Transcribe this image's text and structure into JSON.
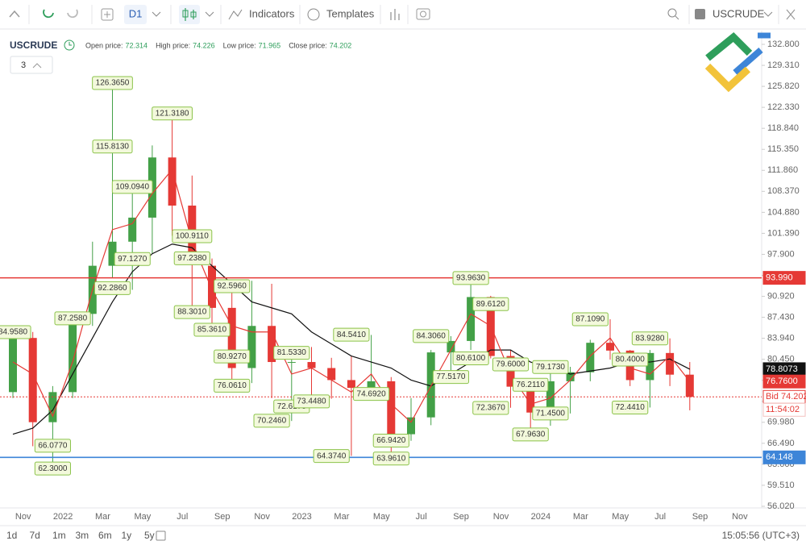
{
  "toolbar": {
    "timeframe": "D1",
    "indicators": "Indicators",
    "templates": "Templates",
    "symbol": "USCRUDE"
  },
  "info": {
    "symbol": "USCRUDE",
    "count": 3,
    "prices": [
      {
        "label": "Open price:",
        "value": 72.314
      },
      {
        "label": "High price:",
        "value": 74.226
      },
      {
        "label": "Low price:",
        "value": 71.965
      },
      {
        "label": "Close price:",
        "value": 74.202
      }
    ]
  },
  "chart_data": {
    "type": "candlestick",
    "categories": [
      null,
      "Nov",
      null,
      "2022",
      null,
      "Mar",
      null,
      "May",
      null,
      "Jul",
      null,
      "Sep",
      null,
      "Nov",
      null,
      "2023",
      null,
      "Mar",
      null,
      "May",
      null,
      "Jul",
      null,
      "Sep",
      null,
      "Nov",
      null,
      "2024",
      null,
      "Mar",
      null,
      "May",
      null,
      "Jul",
      null,
      "Sep",
      null,
      "Nov"
    ],
    "open": [
      75,
      84,
      70,
      75,
      88,
      96,
      100,
      104,
      114,
      106,
      96,
      89,
      79,
      86,
      80,
      80,
      79,
      77,
      75.7,
      76.8,
      68,
      70.8,
      81.6,
      83.5,
      90.8,
      81,
      75.9,
      71.6,
      76.8,
      78.3,
      83.2,
      81.9,
      77,
      81.5,
      77.9,
      null,
      null,
      null
    ],
    "high": [
      85,
      85,
      76,
      88,
      100,
      126.4,
      109,
      116,
      121.3,
      111,
      97.2,
      92.6,
      93.5,
      93,
      81.5,
      82.5,
      80.7,
      81,
      84.5,
      77.5,
      74,
      82,
      84.3,
      93.96,
      91,
      82,
      76.2,
      79.2,
      79.2,
      83.7,
      87.1,
      82,
      82,
      83.93,
      80,
      null,
      null,
      null
    ],
    "low": [
      74,
      66,
      62.3,
      74,
      86,
      94,
      92,
      98,
      101,
      88,
      85.4,
      76,
      76.5,
      74,
      70.2,
      72.6,
      73.9,
      64.4,
      74.7,
      63.96,
      66.9,
      69.5,
      77.6,
      82,
      80.6,
      72.4,
      67.96,
      69.4,
      71.45,
      76.8,
      80.4,
      76,
      72.44,
      76,
      71.97,
      null,
      null,
      null
    ],
    "close": [
      84,
      70,
      75,
      88,
      96,
      100,
      104,
      114,
      106,
      98,
      89,
      79,
      86,
      80,
      80,
      79,
      77,
      75.7,
      76.8,
      68,
      70.8,
      81.6,
      83.5,
      90.8,
      81,
      75.9,
      71.6,
      76.8,
      78.3,
      83.2,
      81.9,
      77,
      81.5,
      77.9,
      74.202,
      null,
      null,
      null
    ],
    "up_color": "#43a047",
    "down_color": "#e53935",
    "moving_averages": [
      {
        "color": "#111111",
        "values": [
          68,
          69,
          72,
          78,
          84,
          90,
          95,
          98,
          99.6,
          99,
          96,
          93,
          90,
          89,
          88,
          85,
          83,
          81,
          80,
          79,
          77,
          76,
          78,
          80,
          82,
          82,
          80,
          79,
          78,
          78.5,
          79,
          80,
          80,
          80.5,
          78.8073,
          null,
          null,
          null
        ]
      },
      {
        "color": "#e53935",
        "values": [
          80,
          78,
          71,
          80,
          92,
          102,
          103,
          108,
          112,
          100,
          92,
          86,
          85,
          85,
          78,
          79,
          77,
          75,
          78,
          73,
          70,
          76,
          82,
          88,
          86,
          78,
          73,
          74,
          77,
          81,
          84,
          79,
          78,
          81,
          76.76,
          null,
          null,
          null
        ]
      }
    ],
    "annotations": [
      [
        {
          "value": 84.958,
          "label": "84.9580"
        }
      ],
      [],
      [
        {
          "value": 66.077,
          "label": "66.0770"
        },
        {
          "value": 62.3,
          "label": "62.3000"
        }
      ],
      [
        {
          "value": 87.258,
          "label": "87.2580"
        }
      ],
      [],
      [
        {
          "value": 126.365,
          "label": "126.3650"
        },
        {
          "value": 115.813,
          "label": "115.8130"
        },
        {
          "value": 92.286,
          "label": "92.2860"
        }
      ],
      [
        {
          "value": 109.094,
          "label": "109.0940"
        },
        {
          "value": 97.127,
          "label": "97.1270"
        }
      ],
      [],
      [
        {
          "value": 121.318,
          "label": "121.3180"
        }
      ],
      [
        {
          "value": 100.911,
          "label": "100.9110"
        },
        {
          "value": 97.238,
          "label": "97.2380"
        },
        {
          "value": 88.301,
          "label": "88.3010"
        }
      ],
      [
        {
          "value": 85.361,
          "label": "85.3610"
        }
      ],
      [
        {
          "value": 92.596,
          "label": "92.5960"
        },
        {
          "value": 80.927,
          "label": "80.9270"
        },
        {
          "value": 76.061,
          "label": "76.0610"
        }
      ],
      [],
      [
        {
          "value": 70.246,
          "label": "70.2460"
        }
      ],
      [
        {
          "value": 81.533,
          "label": "81.5330"
        },
        {
          "value": 72.617,
          "label": "72.6170"
        }
      ],
      [
        {
          "value": 73.448,
          "label": "73.4480"
        }
      ],
      [
        {
          "value": 64.374,
          "label": "64.3740"
        }
      ],
      [
        {
          "value": 84.541,
          "label": "84.5410"
        }
      ],
      [
        {
          "value": 74.692,
          "label": "74.6920"
        }
      ],
      [
        {
          "value": 63.961,
          "label": "63.9610"
        },
        {
          "value": 66.942,
          "label": "66.9420"
        }
      ],
      [],
      [
        {
          "value": 84.306,
          "label": "84.3060"
        }
      ],
      [
        {
          "value": 77.517,
          "label": "77.5170"
        }
      ],
      [
        {
          "value": 93.963,
          "label": "93.9630"
        },
        {
          "value": 80.61,
          "label": "80.6100"
        }
      ],
      [
        {
          "value": 89.612,
          "label": "89.6120"
        },
        {
          "value": 72.367,
          "label": "72.3670"
        }
      ],
      [
        {
          "value": 79.6,
          "label": "79.6000"
        }
      ],
      [
        {
          "value": 76.211,
          "label": "76.2110"
        },
        {
          "value": 67.963,
          "label": "67.9630"
        }
      ],
      [
        {
          "value": 79.173,
          "label": "79.1730"
        },
        {
          "value": 71.45,
          "label": "71.4500"
        }
      ],
      [],
      [
        {
          "value": 87.109,
          "label": "87.1090"
        }
      ],
      [],
      [
        {
          "value": 80.4,
          "label": "80.4000"
        },
        {
          "value": 72.441,
          "label": "72.4410"
        }
      ],
      [
        {
          "value": 83.928,
          "label": "83.9280"
        }
      ],
      [],
      [],
      [],
      [],
      []
    ],
    "ylim": [
      55.75,
      135.08
    ],
    "yticks": [
      {
        "value": 132.8,
        "label": "132.800"
      },
      {
        "value": 129.31,
        "label": "129.310"
      },
      {
        "value": 125.82,
        "label": "125.820"
      },
      {
        "value": 122.33,
        "label": "122.330"
      },
      {
        "value": 118.84,
        "label": "118.840"
      },
      {
        "value": 115.35,
        "label": "115.350"
      },
      {
        "value": 111.86,
        "label": "111.860"
      },
      {
        "value": 108.37,
        "label": "108.370"
      },
      {
        "value": 104.88,
        "label": "104.880"
      },
      {
        "value": 101.39,
        "label": "101.390"
      },
      {
        "value": 97.9,
        "label": "97.900"
      },
      {
        "value": 94.41,
        "label": "94.410"
      },
      {
        "value": 90.92,
        "label": "90.920"
      },
      {
        "value": 87.43,
        "label": "87.430"
      },
      {
        "value": 83.94,
        "label": "83.940"
      },
      {
        "value": 80.45,
        "label": "80.450"
      },
      {
        "value": 76.96,
        "label": "76.960"
      },
      {
        "value": 73.47,
        "label": "73.470"
      },
      {
        "value": 69.98,
        "label": "69.980"
      },
      {
        "value": 66.49,
        "label": "66.490"
      },
      {
        "value": 63.0,
        "label": "63.000"
      },
      {
        "value": 59.51,
        "label": "59.510"
      },
      {
        "value": 56.02,
        "label": "56.020"
      }
    ],
    "levels": [
      {
        "value": 93.99,
        "label": "93.990",
        "color": "#e53935",
        "style": "solid"
      },
      {
        "value": 64.148,
        "label": "64.148",
        "color": "#3d85d8",
        "style": "solid"
      },
      {
        "value": 78.8073,
        "label": "78.8073",
        "color": "#111111",
        "style": "none"
      },
      {
        "value": 76.76,
        "label": "76.7600",
        "color": "#e53935",
        "style": "none"
      },
      {
        "value": 74.202,
        "label": "Bid 74.202",
        "color": "#e53935",
        "style": "dashed"
      }
    ],
    "timer": "11:54:02"
  },
  "footer": {
    "periods": [
      "1d",
      "7d",
      "1m",
      "3m",
      "6m",
      "1y",
      "5y"
    ],
    "clock": "15:05:56 (UTC+3)"
  }
}
